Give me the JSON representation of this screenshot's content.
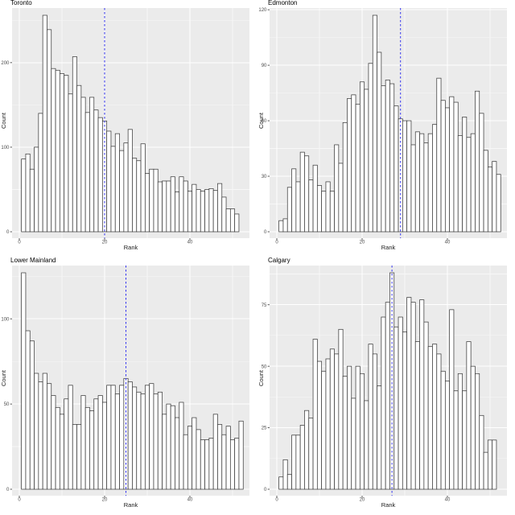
{
  "figure": {
    "kind": "2x2 faceted histograms",
    "xlabel": "Rank",
    "ylabel": "Count"
  },
  "colors": {
    "panel_bg": "#EBEBEB",
    "grid_major": "#FFFFFF",
    "grid_minor": "#FFFFFF",
    "bar_fill": "#FFFFFF",
    "bar_stroke": "#3C3C3C",
    "vline": "#3434F0",
    "tick_mark": "#333333",
    "tick_label": "#4D4D4D",
    "axis_title": "#1A1A1A",
    "title": "#000000"
  },
  "chart_data": [
    {
      "type": "bar",
      "subtype": "histogram",
      "title": "Toronto",
      "xlabel": "Rank",
      "ylabel": "Count",
      "bin_start": 1,
      "bin_width": 1,
      "xticks": [
        0,
        20,
        40
      ],
      "yticks": [
        0,
        100,
        200
      ],
      "ylim": [
        0,
        260
      ],
      "vline_x": 20,
      "values": [
        86,
        92,
        74,
        100,
        140,
        256,
        239,
        193,
        191,
        187,
        185,
        163,
        207,
        173,
        159,
        141,
        159,
        144,
        135,
        131,
        119,
        101,
        116,
        96,
        105,
        121,
        87,
        84,
        104,
        69,
        74,
        74,
        59,
        60,
        60,
        65,
        47,
        65,
        60,
        48,
        56,
        50,
        48,
        50,
        51,
        49,
        57,
        41,
        27,
        27,
        21
      ]
    },
    {
      "type": "bar",
      "subtype": "histogram",
      "title": "Edmonton",
      "xlabel": "Rank",
      "ylabel": "Count",
      "bin_start": 1,
      "bin_width": 1,
      "xticks": [
        0,
        20,
        40
      ],
      "yticks": [
        0,
        30,
        60,
        90,
        120
      ],
      "ylim": [
        0,
        120
      ],
      "vline_x": 29,
      "values": [
        6,
        7,
        24,
        34,
        27,
        43,
        41,
        28,
        36,
        25,
        22,
        27,
        22,
        47,
        37,
        59,
        72,
        74,
        69,
        81,
        77,
        91,
        117,
        97,
        79,
        82,
        80,
        68,
        61,
        60,
        60,
        47,
        54,
        53,
        48,
        53,
        58,
        83,
        71,
        67,
        73,
        70,
        52,
        62,
        51,
        53,
        76,
        64,
        44,
        35,
        38,
        31
      ]
    },
    {
      "type": "bar",
      "subtype": "histogram",
      "title": "Lower Mainland",
      "xlabel": "Rank",
      "ylabel": "Count",
      "bin_start": 1,
      "bin_width": 1,
      "xticks": [
        0,
        20,
        40
      ],
      "yticks": [
        0,
        50,
        100
      ],
      "ylim": [
        0,
        130
      ],
      "vline_x": 25,
      "values": [
        127,
        93,
        87,
        68,
        63,
        68,
        62,
        55,
        48,
        44,
        53,
        61,
        38,
        38,
        55,
        48,
        46,
        53,
        55,
        51,
        61,
        61,
        56,
        61,
        65,
        63,
        60,
        57,
        56,
        61,
        62,
        56,
        57,
        44,
        50,
        49,
        42,
        51,
        32,
        37,
        42,
        35,
        29,
        29,
        30,
        44,
        38,
        32,
        37,
        29,
        30,
        40
      ]
    },
    {
      "type": "bar",
      "subtype": "histogram",
      "title": "Calgary",
      "xlabel": "Rank",
      "ylabel": "Count",
      "bin_start": 1,
      "bin_width": 1,
      "xticks": [
        0,
        20,
        40
      ],
      "yticks": [
        0,
        25,
        50,
        75
      ],
      "ylim": [
        0,
        90
      ],
      "vline_x": 27,
      "values": [
        5,
        12,
        6,
        22,
        22,
        26,
        32,
        29,
        61,
        52,
        48,
        53,
        57,
        55,
        65,
        46,
        50,
        37,
        50,
        47,
        36,
        59,
        55,
        42,
        70,
        76,
        88,
        66,
        70,
        64,
        78,
        76,
        60,
        77,
        68,
        58,
        59,
        55,
        48,
        44,
        73,
        40,
        47,
        40,
        60,
        50,
        47,
        30,
        15,
        20,
        20
      ]
    }
  ]
}
